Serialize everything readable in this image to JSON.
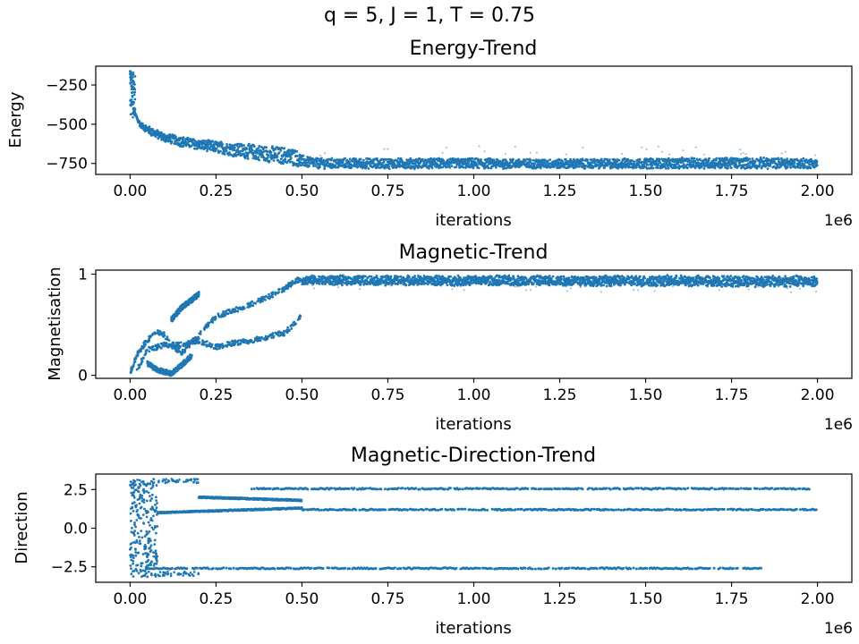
{
  "figure": {
    "suptitle": "q = 5, J = 1, T = 0.75",
    "series_color": "#1f77b4"
  },
  "chart_data": [
    {
      "type": "scatter",
      "title": "Energy-Trend",
      "xlabel": "iterations",
      "ylabel": "Energy",
      "x_offset_label": "1e6",
      "xlim": [
        -0.1,
        2.1
      ],
      "ylim": [
        -820,
        -130
      ],
      "xticks": [
        0.0,
        0.25,
        0.5,
        0.75,
        1.0,
        1.25,
        1.5,
        1.75,
        2.0
      ],
      "xtick_labels": [
        "0.00",
        "0.25",
        "0.50",
        "0.75",
        "1.00",
        "1.25",
        "1.50",
        "1.75",
        "2.00"
      ],
      "yticks": [
        -250,
        -500,
        -750
      ],
      "ytick_labels": [
        "−250",
        "−500",
        "−750"
      ],
      "series": [
        {
          "values_upper": [
            [
              0.0,
              -160
            ],
            [
              0.01,
              -400
            ],
            [
              0.03,
              -490
            ],
            [
              0.06,
              -520
            ],
            [
              0.1,
              -560
            ],
            [
              0.15,
              -580
            ],
            [
              0.2,
              -600
            ],
            [
              0.25,
              -610
            ],
            [
              0.3,
              -620
            ],
            [
              0.35,
              -630
            ],
            [
              0.4,
              -640
            ],
            [
              0.45,
              -650
            ],
            [
              0.48,
              -660
            ],
            [
              0.5,
              -700
            ],
            [
              0.55,
              -720
            ],
            [
              0.75,
              -720
            ],
            [
              1.0,
              -720
            ],
            [
              1.25,
              -725
            ],
            [
              1.5,
              -720
            ],
            [
              1.75,
              -715
            ],
            [
              2.0,
              -720
            ]
          ],
          "values_lower": [
            [
              0.0,
              -160
            ],
            [
              0.01,
              -430
            ],
            [
              0.03,
              -520
            ],
            [
              0.06,
              -570
            ],
            [
              0.1,
              -610
            ],
            [
              0.15,
              -640
            ],
            [
              0.2,
              -660
            ],
            [
              0.25,
              -680
            ],
            [
              0.3,
              -700
            ],
            [
              0.35,
              -720
            ],
            [
              0.4,
              -740
            ],
            [
              0.45,
              -755
            ],
            [
              0.5,
              -770
            ],
            [
              0.55,
              -780
            ],
            [
              0.75,
              -780
            ],
            [
              1.0,
              -780
            ],
            [
              1.25,
              -780
            ],
            [
              1.5,
              -780
            ],
            [
              1.75,
              -780
            ],
            [
              2.0,
              -780
            ]
          ]
        }
      ]
    },
    {
      "type": "scatter",
      "title": "Magnetic-Trend",
      "xlabel": "iterations",
      "ylabel": "Magnetisation",
      "x_offset_label": "1e6",
      "xlim": [
        -0.1,
        2.1
      ],
      "ylim": [
        -0.03,
        1.04
      ],
      "xticks": [
        0.0,
        0.25,
        0.5,
        0.75,
        1.0,
        1.25,
        1.5,
        1.75,
        2.0
      ],
      "xtick_labels": [
        "0.00",
        "0.25",
        "0.50",
        "0.75",
        "1.00",
        "1.25",
        "1.50",
        "1.75",
        "2.00"
      ],
      "yticks": [
        0,
        1
      ],
      "ytick_labels": [
        "0",
        "1"
      ],
      "series": [
        {
          "branches": [
            [
              [
                0.0,
                0.02
              ],
              [
                0.02,
                0.2
              ],
              [
                0.05,
                0.35
              ],
              [
                0.08,
                0.42
              ],
              [
                0.1,
                0.4
              ],
              [
                0.12,
                0.3
              ],
              [
                0.15,
                0.22
              ],
              [
                0.2,
                0.4
              ],
              [
                0.25,
                0.58
              ],
              [
                0.3,
                0.64
              ],
              [
                0.35,
                0.7
              ],
              [
                0.4,
                0.77
              ],
              [
                0.45,
                0.86
              ],
              [
                0.48,
                0.93
              ],
              [
                0.5,
                0.96
              ]
            ],
            [
              [
                0.02,
                0.05
              ],
              [
                0.05,
                0.25
              ],
              [
                0.1,
                0.3
              ],
              [
                0.15,
                0.3
              ],
              [
                0.2,
                0.34
              ],
              [
                0.25,
                0.28
              ],
              [
                0.3,
                0.32
              ],
              [
                0.35,
                0.34
              ],
              [
                0.4,
                0.38
              ],
              [
                0.45,
                0.42
              ],
              [
                0.48,
                0.52
              ],
              [
                0.5,
                0.6
              ]
            ],
            [
              [
                0.05,
                0.12
              ],
              [
                0.08,
                0.05
              ],
              [
                0.12,
                0.02
              ],
              [
                0.15,
                0.1
              ],
              [
                0.18,
                0.2
              ]
            ],
            [
              [
                0.12,
                0.55
              ],
              [
                0.15,
                0.67
              ],
              [
                0.2,
                0.8
              ]
            ]
          ],
          "values_upper": [
            [
              0.5,
              0.98
            ],
            [
              2.0,
              0.98
            ]
          ],
          "values_lower": [
            [
              0.5,
              0.9
            ],
            [
              2.0,
              0.88
            ]
          ]
        }
      ]
    },
    {
      "type": "scatter",
      "title": "Magnetic-Direction-Trend",
      "xlabel": "iterations",
      "ylabel": "Direction",
      "x_offset_label": "1e6",
      "xlim": [
        -0.1,
        2.1
      ],
      "ylim": [
        -3.5,
        3.5
      ],
      "xticks": [
        0.0,
        0.25,
        0.5,
        0.75,
        1.0,
        1.25,
        1.5,
        1.75,
        2.0
      ],
      "xtick_labels": [
        "0.00",
        "0.25",
        "0.50",
        "0.75",
        "1.00",
        "1.25",
        "1.50",
        "1.75",
        "2.00"
      ],
      "yticks": [
        2.5,
        0.0,
        -2.5
      ],
      "ytick_labels": [
        "2.5",
        "0.0",
        "−2.5"
      ],
      "series": [
        {
          "bands": [
            {
              "x": [
                0.35,
                1.98
              ],
              "y": 2.55
            },
            {
              "x": [
                0.2,
                0.5
              ],
              "y": 2.0,
              "y_end": 1.8
            },
            {
              "x": [
                0.5,
                2.0
              ],
              "y": 1.2
            },
            {
              "x": [
                0.08,
                0.5
              ],
              "y": 1.0,
              "y_end": 1.3
            },
            {
              "x": [
                0.05,
                1.84
              ],
              "y": -2.6
            }
          ]
        }
      ]
    }
  ]
}
